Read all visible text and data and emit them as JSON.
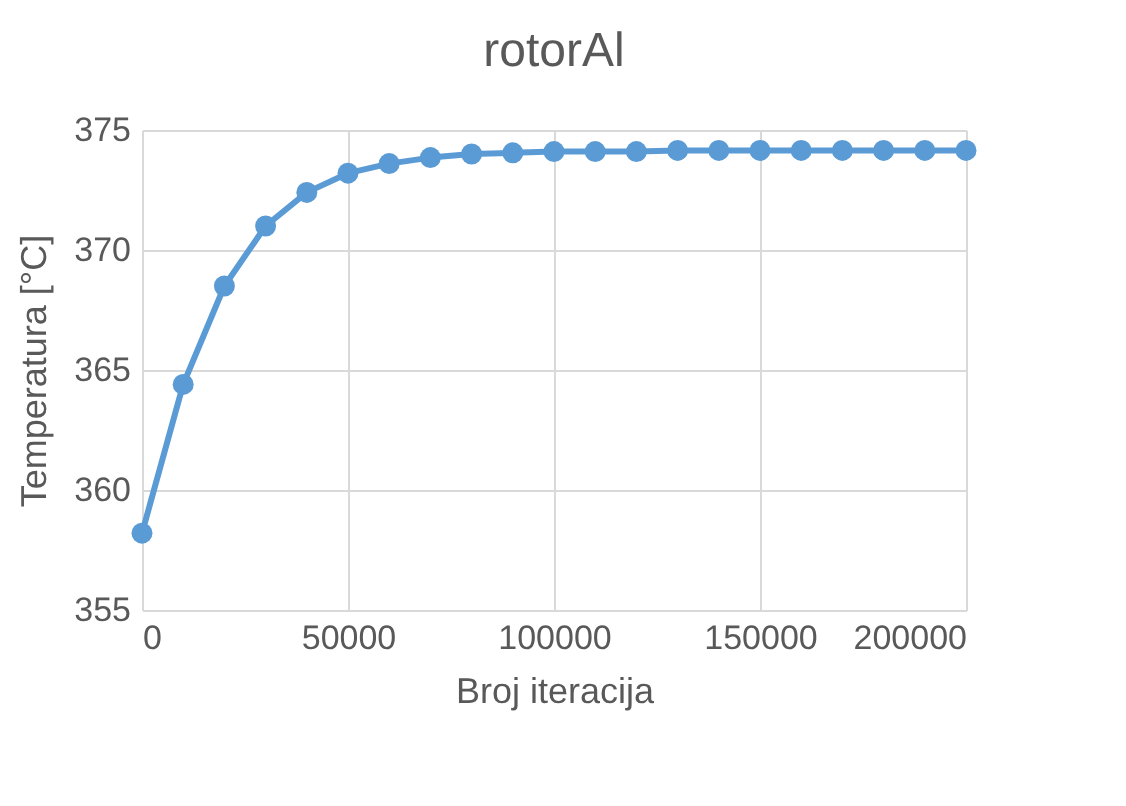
{
  "chart_data": {
    "type": "line",
    "title": "rotorAl",
    "xlabel": "Broj iteracija",
    "ylabel": "Temperatura [°C]",
    "x": [
      0,
      10000,
      20000,
      30000,
      40000,
      50000,
      60000,
      70000,
      80000,
      90000,
      100000,
      110000,
      120000,
      130000,
      140000,
      150000,
      160000,
      170000,
      180000,
      190000,
      200000
    ],
    "series": [
      {
        "color": "#5b9bd5",
        "values": [
          358.2,
          364.4,
          368.5,
          371.0,
          372.4,
          373.2,
          373.6,
          373.85,
          374.0,
          374.05,
          374.1,
          374.1,
          374.1,
          374.15,
          374.15,
          374.15,
          374.15,
          374.15,
          374.15,
          374.15,
          374.15
        ]
      }
    ],
    "xlim": [
      0,
      200000
    ],
    "xticks": [
      0,
      50000,
      100000,
      150000,
      200000
    ],
    "ylim": [
      355,
      375
    ],
    "yticks": [
      355,
      360,
      365,
      370,
      375
    ],
    "grid": true,
    "marker": "circle",
    "line_style": "solid"
  }
}
